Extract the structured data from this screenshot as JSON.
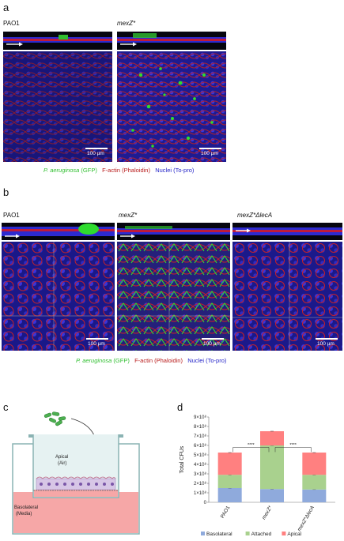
{
  "panels": {
    "a": {
      "label": "a",
      "images": [
        {
          "title": "PAO1",
          "scale": "100 µm"
        },
        {
          "title": "mexZ*",
          "scale": "100 µm"
        }
      ],
      "legend": {
        "green_italic": "P. aeruginosa",
        "green_rest": " (GFP)",
        "red": "F-actin (Phaloidin)",
        "blue": "Nuclei (To-pro)"
      }
    },
    "b": {
      "label": "b",
      "images": [
        {
          "title": "PAO1",
          "scale": "100 µm"
        },
        {
          "title": "mexZ*",
          "scale": "100 µm"
        },
        {
          "title": "mexZ*ΔlecA",
          "scale": "100 µm"
        }
      ],
      "legend": {
        "green_italic": "P. aeruginosa",
        "green_rest": " (GFP)",
        "red": "F-actin (Phaloidin)",
        "blue": "Nuclei (To-pro)"
      }
    },
    "c": {
      "label": "c",
      "apical": "Apical\n(Air)",
      "apical_line1": "Apical",
      "apical_line2": "(Air)",
      "basolateral_line1": "Basolateral",
      "basolateral_line2": "(Media)"
    },
    "d": {
      "label": "d",
      "significance": [
        "****",
        "****"
      ]
    }
  },
  "colors": {
    "basolateral": "#8faadc",
    "attached": "#a9d18e",
    "apical": "#ff8080",
    "gfp": "#2fbf2f",
    "actin": "#b81a1a",
    "nuclei": "#2424c8"
  },
  "chart_data": {
    "type": "bar",
    "stacked": true,
    "categories": [
      "PAO1",
      "mexZ*",
      "mexZ*ΔlecA"
    ],
    "ylabel": "Total CFUs",
    "ylim": [
      0,
      900000000
    ],
    "yticks": [
      0,
      100000000,
      200000000,
      300000000,
      400000000,
      500000000,
      600000000,
      700000000,
      800000000,
      900000000
    ],
    "ytick_labels": [
      "0",
      "1×10⁸",
      "2×10⁸",
      "3×10⁸",
      "4×10⁸",
      "5×10⁸",
      "6×10⁸",
      "7×10⁸",
      "8×10⁸",
      "9×10⁸"
    ],
    "series": [
      {
        "name": "Basolateral",
        "values": [
          150000000,
          140000000,
          135000000
        ]
      },
      {
        "name": "Attached",
        "values": [
          140000000,
          460000000,
          155000000
        ]
      },
      {
        "name": "Apical",
        "values": [
          235000000,
          150000000,
          235000000
        ]
      }
    ],
    "legend_position": "bottom",
    "grid": false
  }
}
